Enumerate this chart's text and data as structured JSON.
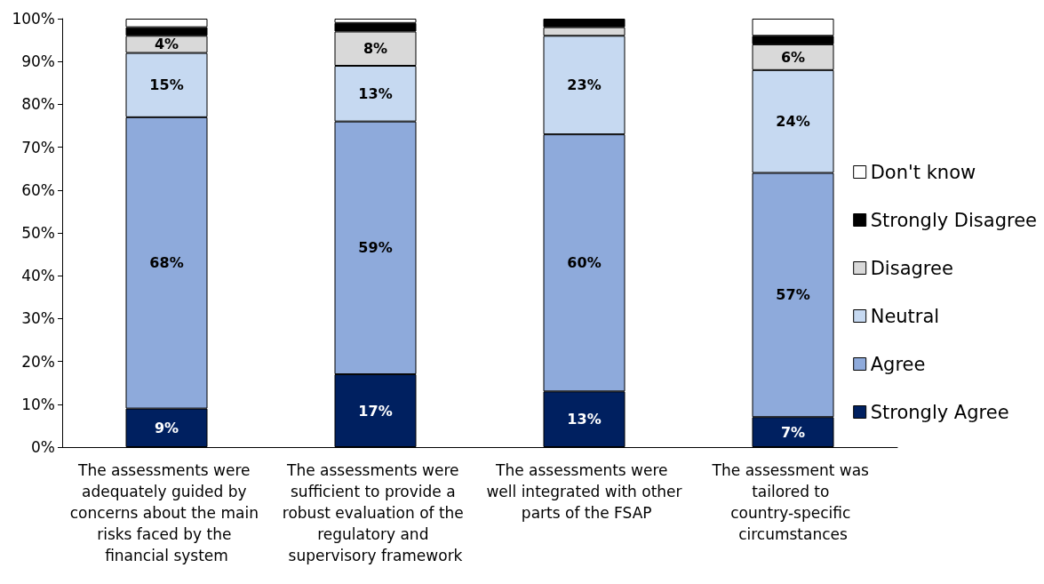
{
  "chart_data": {
    "type": "bar",
    "stacked": true,
    "categories": [
      "The assessments were adequately guided by concerns about the main risks faced by the financial system",
      "The assessments were sufficient to provide a robust evaluation of the regulatory and supervisory framework",
      "The assessments were well integrated with other parts of the FSAP",
      "The assessment was tailored to country-specific circumstances"
    ],
    "series": [
      {
        "name": "Strongly Agree",
        "color": "#002060",
        "values": [
          9,
          17,
          13,
          7
        ],
        "value_labels": [
          "9%",
          "17%",
          "13%",
          "7%"
        ]
      },
      {
        "name": "Agree",
        "color": "#8eaadb",
        "values": [
          68,
          59,
          60,
          57
        ],
        "value_labels": [
          "68%",
          "59%",
          "60%",
          "57%"
        ]
      },
      {
        "name": "Neutral",
        "color": "#c6d9f1",
        "values": [
          15,
          13,
          23,
          24
        ],
        "value_labels": [
          "15%",
          "13%",
          "23%",
          "24%"
        ]
      },
      {
        "name": "Disagree",
        "color": "#d9d9d9",
        "values": [
          4,
          8,
          2,
          6
        ],
        "value_labels": [
          "4%",
          "8%",
          null,
          "6%"
        ]
      },
      {
        "name": "Strongly Disagree",
        "color": "#000000",
        "values": [
          2,
          2,
          2,
          2
        ],
        "value_labels": [
          null,
          null,
          null,
          null
        ]
      },
      {
        "name": "Don't know",
        "color": "#ffffff",
        "values": [
          2,
          1,
          null,
          4
        ],
        "value_labels": [
          null,
          null,
          null,
          null
        ]
      }
    ],
    "ylim": [
      0,
      100
    ],
    "yticks": [
      {
        "value": 0,
        "label": "0%"
      },
      {
        "value": 10,
        "label": "10%"
      },
      {
        "value": 20,
        "label": "20%"
      },
      {
        "value": 30,
        "label": "30%"
      },
      {
        "value": 40,
        "label": "40%"
      },
      {
        "value": 50,
        "label": "50%"
      },
      {
        "value": 60,
        "label": "60%"
      },
      {
        "value": 70,
        "label": "70%"
      },
      {
        "value": 80,
        "label": "80%"
      },
      {
        "value": 90,
        "label": "90%"
      },
      {
        "value": 100,
        "label": "100%"
      }
    ],
    "grid": false,
    "legend": "right"
  }
}
